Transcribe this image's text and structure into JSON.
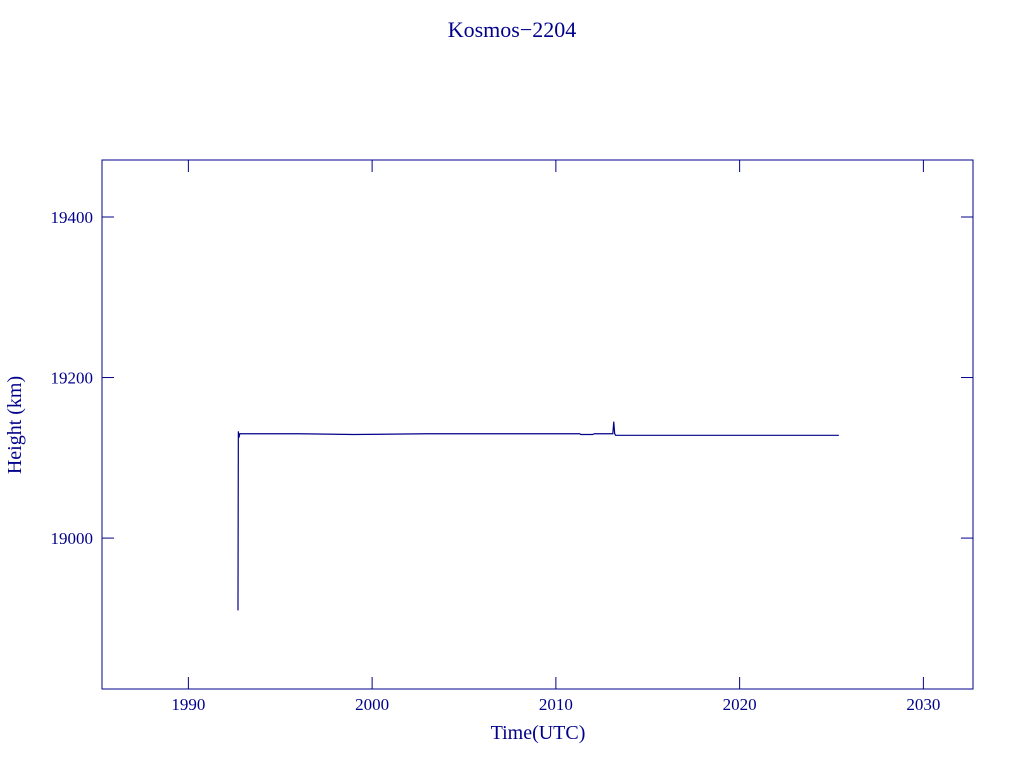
{
  "chart_data": {
    "type": "line",
    "title": "Kosmos−2204",
    "x_label": "Time(UTC)",
    "y_label": "Height (km)",
    "color": "#00008b",
    "x": [
      1992.7,
      1992.72,
      1992.75,
      1992.8,
      1996.0,
      1999.0,
      2003.0,
      2007.0,
      2011.3,
      2011.35,
      2012.0,
      2012.1,
      2013.1,
      2013.15,
      2013.2,
      2013.25,
      2014.0,
      2020.0,
      2025.4
    ],
    "series": [
      {
        "name": "Height",
        "color": "#00008b",
        "values": [
          18910,
          19133,
          19125,
          19130,
          19130,
          19129,
          19130,
          19130,
          19130,
          19129,
          19129,
          19130,
          19130,
          19145,
          19130,
          19128,
          19128,
          19128,
          19128
        ]
      }
    ],
    "xlim": [
      1985.3,
      2032.7
    ],
    "xticks": [
      1990,
      2000,
      2010,
      2020,
      2030
    ],
    "ylim": [
      18812,
      19471
    ],
    "yticks": [
      19000,
      19200,
      19400
    ]
  }
}
